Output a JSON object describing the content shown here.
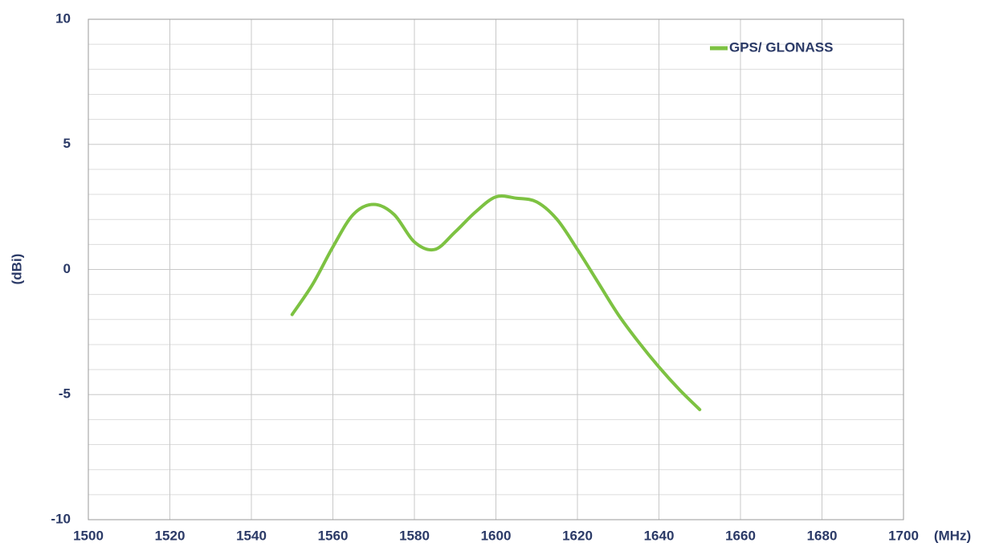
{
  "chart_data": {
    "type": "line",
    "x_label": "(MHz)",
    "y_label": "(dBi)",
    "x": [
      1550,
      1555,
      1560,
      1565,
      1570,
      1575,
      1580,
      1585,
      1590,
      1595,
      1600,
      1605,
      1610,
      1615,
      1620,
      1625,
      1630,
      1635,
      1640,
      1645,
      1650
    ],
    "series": [
      {
        "name": "GPS/ GLONASS",
        "color": "#7dc242",
        "values": [
          -1.8,
          -0.6,
          0.9,
          2.2,
          2.6,
          2.2,
          1.1,
          0.8,
          1.5,
          2.3,
          2.9,
          2.85,
          2.7,
          2.0,
          0.8,
          -0.5,
          -1.8,
          -2.9,
          -3.9,
          -4.8,
          -5.6
        ]
      }
    ],
    "xlim": [
      1500,
      1700
    ],
    "xticks": [
      1500,
      1520,
      1540,
      1560,
      1580,
      1600,
      1620,
      1640,
      1660,
      1680,
      1700
    ],
    "ylim": [
      -10,
      10
    ],
    "yticks": [
      -10,
      -5,
      0,
      5,
      10
    ],
    "grid": true,
    "legend": "upper right"
  }
}
